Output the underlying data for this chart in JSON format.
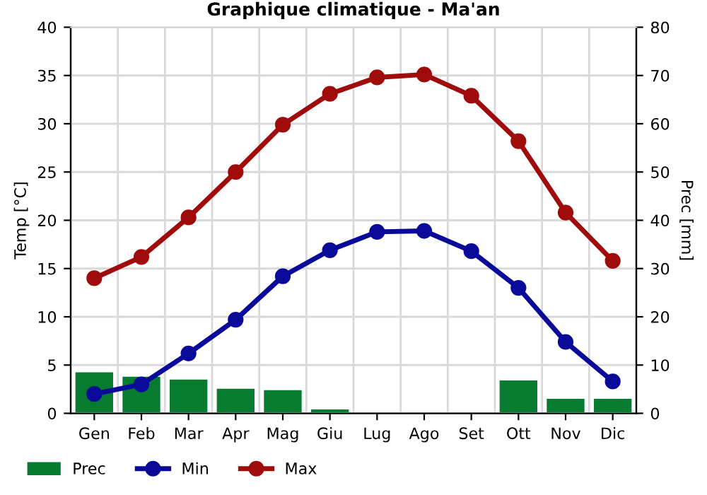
{
  "chart_data": {
    "type": "line",
    "title": "Graphique climatique - Ma'an",
    "ylabel": "Temp [°C]",
    "y2label": "Prec [mm]",
    "categories": [
      "Gen",
      "Feb",
      "Mar",
      "Apr",
      "Mag",
      "Giu",
      "Lug",
      "Ago",
      "Set",
      "Ott",
      "Nov",
      "Dic"
    ],
    "series": [
      {
        "name": "Prec",
        "type": "bar",
        "axis": "y2",
        "color": "#077b2f",
        "values": [
          8.5,
          7.6,
          7,
          5.1,
          4.8,
          0.8,
          0,
          0.2,
          0.2,
          6.8,
          3,
          3
        ]
      },
      {
        "name": "Min",
        "color": "#0a0a9a",
        "values": [
          2,
          3,
          6.2,
          9.7,
          14.2,
          16.9,
          18.8,
          18.9,
          16.8,
          13,
          7.4,
          3.3
        ]
      },
      {
        "name": "Max",
        "color": "#a00b0b",
        "values": [
          14,
          16.2,
          20.3,
          25,
          29.9,
          33.1,
          34.8,
          35.1,
          32.9,
          28.2,
          20.8,
          15.8
        ]
      }
    ],
    "ylim": [
      0,
      40
    ],
    "yticks": [
      0,
      5,
      10,
      15,
      20,
      25,
      30,
      35,
      40
    ],
    "y2lim": [
      0,
      80
    ],
    "y2ticks": [
      0,
      10,
      20,
      30,
      40,
      50,
      60,
      70,
      80
    ],
    "grid": true,
    "legend": "bottom",
    "marker": "circle",
    "line_style": "solid"
  }
}
